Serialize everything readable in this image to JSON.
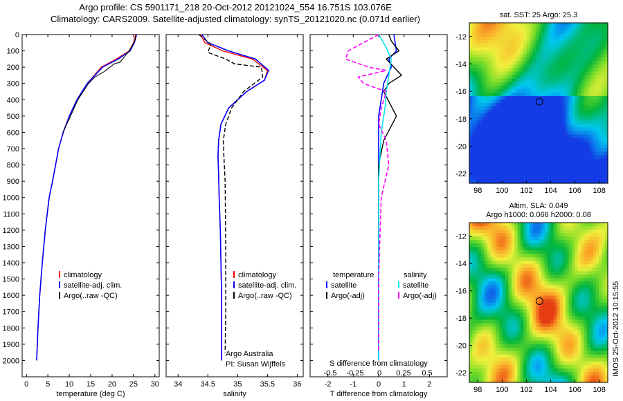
{
  "title_line1": "Argo profile: CS 5901171_218 20-Oct-2012 20121024_554 16.751S 103.076E",
  "title_line2": "Climatology: CARS2009. Satellite-adjusted climatology: synTS_20121020.nc (0.071d earlier)",
  "map_sst_title": "sat. SST: 25 Argo: 25.3",
  "map_sla_title1": "Altim. SLA: 0.049",
  "map_sla_title2": "Argo h1000: 0.066 h2000: 0.08",
  "stamp": "IMOS 25-Oct-2012 10:15:55",
  "colors": {
    "climatology": "#ff0000",
    "satellite": "#0000ff",
    "argo": "#000000",
    "sat_salinity": "#00e5ee",
    "argo_salinity": "#ff00ff"
  },
  "chart_data": [
    {
      "type": "line",
      "xlabel": "temperature (deg C)",
      "ylabel": "",
      "xlim": [
        -1,
        31
      ],
      "ylim": [
        2100,
        0
      ],
      "xticks": [
        "0",
        "5",
        "10",
        "15",
        "20",
        "25",
        "30"
      ],
      "yticks": [
        "0",
        "100",
        "200",
        "300",
        "400",
        "500",
        "600",
        "700",
        "800",
        "900",
        "1000",
        "1100",
        "1200",
        "1300",
        "1400",
        "1500",
        "1600",
        "1700",
        "1800",
        "1900",
        "2000"
      ],
      "legend": [
        "climatology",
        "satellite-adj. clim.",
        "Argo(..raw -QC)"
      ],
      "legend_position": "lower-center",
      "series": [
        {
          "name": "climatology",
          "x": [
            25.5,
            25.0,
            24.0,
            21.0,
            17.5,
            14.2,
            11.8,
            10.0,
            8.6,
            7.5,
            6.8,
            6.1,
            5.3,
            4.4,
            3.7,
            3.1,
            2.7,
            2.4
          ],
          "y": [
            0,
            50,
            100,
            150,
            200,
            300,
            400,
            500,
            600,
            700,
            800,
            900,
            1000,
            1200,
            1400,
            1600,
            1800,
            2000
          ]
        },
        {
          "name": "satellite-adj. clim.",
          "x": [
            25.7,
            25.2,
            24.2,
            21.4,
            17.8,
            14.2,
            11.8,
            10.0,
            8.6,
            7.5,
            6.8,
            6.1,
            5.3,
            4.4,
            3.7,
            3.1,
            2.7,
            2.4
          ],
          "y": [
            0,
            50,
            100,
            150,
            200,
            300,
            400,
            500,
            600,
            700,
            800,
            900,
            1000,
            1200,
            1400,
            1600,
            1800,
            2000
          ]
        },
        {
          "name": "Argo(..raw -QC)",
          "x": [
            25.6,
            25.3,
            24.0,
            21.8,
            20.5,
            18.0,
            16.0,
            14.5,
            12.0,
            10.3,
            8.5
          ],
          "y": [
            0,
            40,
            100,
            170,
            180,
            230,
            260,
            300,
            400,
            500,
            600
          ]
        }
      ]
    },
    {
      "type": "line",
      "xlabel": "salinity",
      "ylabel": "",
      "xlim": [
        33.8,
        36.1
      ],
      "ylim": [
        2100,
        0
      ],
      "xticks": [
        "34",
        "34.5",
        "35",
        "35.5",
        "36"
      ],
      "legend": [
        "climatology",
        "satellite-adj. clim.",
        "Argo(..raw -QC)"
      ],
      "legend_position": "lower-center",
      "annotations": [
        "Argo Australia",
        "PI: Susan Wijffels"
      ],
      "series": [
        {
          "name": "climatology",
          "x": [
            34.38,
            34.45,
            34.75,
            35.25,
            35.5,
            35.45,
            35.15,
            34.85,
            34.72,
            34.68,
            34.67,
            34.68,
            34.69,
            34.71,
            34.72,
            34.73,
            34.73,
            34.73
          ],
          "y": [
            0,
            50,
            100,
            150,
            220,
            280,
            350,
            450,
            550,
            650,
            750,
            850,
            1000,
            1200,
            1400,
            1600,
            1800,
            2000
          ]
        },
        {
          "name": "satellite-adj. clim.",
          "x": [
            34.4,
            34.5,
            34.85,
            35.3,
            35.52,
            35.45,
            35.15,
            34.85,
            34.72,
            34.68,
            34.67,
            34.68,
            34.69,
            34.71,
            34.72,
            34.73,
            34.73,
            34.73
          ],
          "y": [
            0,
            50,
            100,
            150,
            220,
            280,
            350,
            450,
            550,
            650,
            750,
            850,
            1000,
            1200,
            1400,
            1600,
            1800,
            2000
          ]
        },
        {
          "name": "Argo(..raw -QC)",
          "x": [
            34.35,
            34.55,
            34.5,
            34.8,
            34.95,
            35.4,
            35.42,
            35.1,
            34.9,
            34.8,
            34.76,
            34.77,
            34.79,
            34.8,
            34.8,
            34.79
          ],
          "y": [
            0,
            60,
            110,
            150,
            180,
            200,
            260,
            350,
            450,
            550,
            650,
            750,
            900,
            1300,
            1700,
            1950
          ]
        }
      ]
    },
    {
      "type": "line",
      "xlabel": "T difference from climatology",
      "xlabel2": "S difference from climatology",
      "xlim": [
        -2.7,
        2.7
      ],
      "ylim": [
        2100,
        0
      ],
      "xticks": [
        "-2",
        "-1",
        "0",
        "1",
        "2"
      ],
      "xticks2": [
        "-0.5",
        "-0.25",
        "0",
        "0.25",
        "0.5"
      ],
      "legend": [
        "temperature",
        "satellite",
        "Argo(-adj)",
        "salinity",
        "satellite",
        "Argo(-adj)"
      ],
      "legend_position": "lower-center",
      "series": [
        {
          "name": "satellite",
          "x": [
            0.6,
            0.7,
            0.4,
            0.5,
            0.2,
            0.1,
            0.0,
            0.0,
            0.0,
            0.0,
            0.0
          ],
          "y": [
            0,
            100,
            150,
            200,
            300,
            400,
            500,
            700,
            1000,
            1500,
            2000
          ]
        },
        {
          "name": "Argo(-adj)",
          "x": [
            0.4,
            0.5,
            0.8,
            0.3,
            0.6,
            0.9,
            0.4,
            0.2,
            0.7,
            0.2,
            0.0,
            0.0,
            0.0,
            0.0
          ],
          "y": [
            0,
            40,
            100,
            150,
            200,
            250,
            300,
            350,
            500,
            650,
            800,
            1000,
            1500,
            1950
          ]
        },
        {
          "name": "satellite",
          "x": [
            0.0,
            0.3,
            0.5,
            0.4,
            0.3,
            0.25,
            0.1,
            0.0,
            0.0,
            0.0
          ],
          "y": [
            0,
            80,
            150,
            250,
            350,
            450,
            600,
            900,
            1400,
            2000
          ]
        },
        {
          "name": "Argo(-adj)",
          "x": [
            0.0,
            -1.2,
            -1.3,
            -0.4,
            0.3,
            -0.8,
            -0.6,
            0.3,
            0.1,
            0.0,
            0.3,
            0.4,
            0.1,
            0.0,
            0.0
          ],
          "y": [
            0,
            100,
            150,
            200,
            220,
            260,
            300,
            350,
            450,
            550,
            650,
            800,
            1000,
            1500,
            1950
          ]
        }
      ]
    },
    {
      "type": "heatmap",
      "title": "sat. SST: 25 Argo: 25.3",
      "xticks": [
        "98",
        "100",
        "102",
        "104",
        "106",
        "108"
      ],
      "yticks": [
        "-12",
        "-14",
        "-16",
        "-18",
        "-20",
        "-22"
      ],
      "xlim": [
        97.3,
        108.7
      ],
      "ylim": [
        -22.7,
        -11.0
      ],
      "marker": {
        "x": 103.076,
        "y": -16.751
      }
    },
    {
      "type": "heatmap",
      "title": "Altim. SLA: 0.049",
      "xticks": [
        "98",
        "100",
        "102",
        "104",
        "106",
        "108"
      ],
      "yticks": [
        "-12",
        "-14",
        "-16",
        "-18",
        "-20",
        "-22"
      ],
      "xlim": [
        97.3,
        108.7
      ],
      "ylim": [
        -22.7,
        -11.0
      ],
      "marker": {
        "x": 103.076,
        "y": -16.751
      }
    }
  ]
}
